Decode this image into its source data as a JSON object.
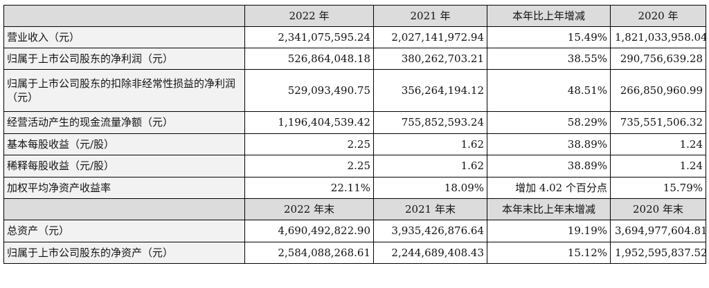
{
  "header_row_1": {
    "col1": "2022 年",
    "col2": "2021 年",
    "col3": "本年比上年增减",
    "col4": "2020 年"
  },
  "rows_1": [
    {
      "label": "营业收入（元）",
      "v2022": "2,341,075,595.24",
      "v2021": "2,027,141,972.94",
      "change": "15.49%",
      "v2020": "1,821,033,958.04"
    },
    {
      "label": "归属于上市公司股东的净利润（元）",
      "v2022": "526,864,048.18",
      "v2021": "380,262,703.21",
      "change": "38.55%",
      "v2020": "290,756,639.28"
    },
    {
      "label": "归属于上市公司股东的扣除非经常性损益的净利润（元）",
      "v2022": "529,093,490.75",
      "v2021": "356,264,194.12",
      "change": "48.51%",
      "v2020": "266,850,960.99"
    },
    {
      "label": "经营活动产生的现金流量净额（元）",
      "v2022": "1,196,404,539.42",
      "v2021": "755,852,593.24",
      "change": "58.29%",
      "v2020": "735,551,506.32"
    },
    {
      "label": "基本每股收益（元/股）",
      "v2022": "2.25",
      "v2021": "1.62",
      "change": "38.89%",
      "v2020": "1.24"
    },
    {
      "label": "稀释每股收益（元/股）",
      "v2022": "2.25",
      "v2021": "1.62",
      "change": "38.89%",
      "v2020": "1.24"
    },
    {
      "label": "加权平均净资产收益率",
      "v2022": "22.11%",
      "v2021": "18.09%",
      "change": "增加 4.02 个百分点",
      "v2020": "15.79%"
    }
  ],
  "header_row_2": {
    "col1": "2022 年末",
    "col2": "2021 年末",
    "col3": "本年末比上年末增减",
    "col4": "2020 年末"
  },
  "rows_2": [
    {
      "label": "总资产（元）",
      "v2022": "4,690,492,822.90",
      "v2021": "3,935,426,876.64",
      "change": "19.19%",
      "v2020": "3,694,977,604.81"
    },
    {
      "label": "归属于上市公司股东的净资产（元）",
      "v2022": "2,584,088,268.61",
      "v2021": "2,244,689,408.43",
      "change": "15.12%",
      "v2020": "1,952,595,837.52"
    }
  ]
}
